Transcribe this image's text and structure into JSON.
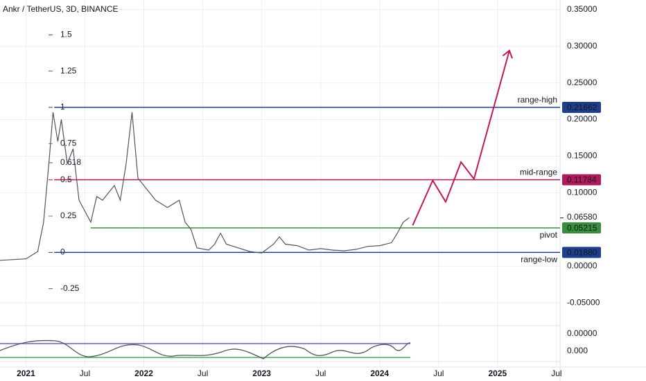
{
  "chart_data": {
    "type": "line",
    "title": "Ankr / TetherUS, 3D, BINANCE",
    "xlim": [
      2020.78,
      2025.53
    ],
    "xticks": [
      {
        "value": 2021,
        "label": "2021"
      },
      {
        "value": 2021.5,
        "label": "Jul"
      },
      {
        "value": 2022,
        "label": "2022"
      },
      {
        "value": 2022.5,
        "label": "Jul"
      },
      {
        "value": 2023,
        "label": "2023"
      },
      {
        "value": 2023.5,
        "label": "Jul"
      },
      {
        "value": 2024,
        "label": "2024"
      },
      {
        "value": 2024.5,
        "label": "Jul"
      },
      {
        "value": 2025,
        "label": "2025"
      },
      {
        "value": 2025.5,
        "label": "Jul"
      }
    ],
    "ylim": [
      -0.081,
      0.363
    ],
    "yticks": [
      {
        "value": 0.35,
        "label": "0.35000"
      },
      {
        "value": 0.3,
        "label": "0.30000"
      },
      {
        "value": 0.25,
        "label": "0.25000"
      },
      {
        "value": 0.2,
        "label": "0.20000"
      },
      {
        "value": 0.15,
        "label": "0.15000"
      },
      {
        "value": 0.1,
        "label": "0.10000"
      },
      {
        "value": 0,
        "label": "0.00000"
      },
      {
        "value": -0.05,
        "label": "-0.05000"
      }
    ],
    "grid": true,
    "color": "#50535e",
    "x": [
      2020.78,
      2021.0,
      2021.1,
      2021.15,
      2021.2,
      2021.23,
      2021.27,
      2021.3,
      2021.35,
      2021.4,
      2021.45,
      2021.5,
      2021.55,
      2021.6,
      2021.65,
      2021.7,
      2021.75,
      2021.8,
      2021.85,
      2021.9,
      2021.95,
      2022.0,
      2022.1,
      2022.2,
      2022.3,
      2022.35,
      2022.4,
      2022.45,
      2022.55,
      2022.6,
      2022.65,
      2022.7,
      2022.8,
      2022.9,
      2023.0,
      2023.1,
      2023.15,
      2023.2,
      2023.3,
      2023.4,
      2023.5,
      2023.6,
      2023.7,
      2023.8,
      2023.9,
      2024.0,
      2024.1,
      2024.15,
      2024.2,
      2024.25
    ],
    "values": [
      0.008,
      0.01,
      0.02,
      0.06,
      0.15,
      0.21,
      0.17,
      0.2,
      0.14,
      0.16,
      0.09,
      0.075,
      0.06,
      0.095,
      0.09,
      0.1,
      0.11,
      0.09,
      0.14,
      0.21,
      0.12,
      0.11,
      0.09,
      0.08,
      0.09,
      0.06,
      0.05,
      0.025,
      0.022,
      0.03,
      0.045,
      0.03,
      0.025,
      0.02,
      0.018,
      0.03,
      0.04,
      0.03,
      0.028,
      0.022,
      0.024,
      0.022,
      0.021,
      0.023,
      0.027,
      0.028,
      0.032,
      0.045,
      0.06,
      0.066
    ],
    "current_price": {
      "value": 0.0658,
      "label": "0.06580"
    },
    "projection": {
      "color": "#c2185b",
      "x": [
        2024.28,
        2024.45,
        2024.56,
        2024.69,
        2024.8,
        2025.1
      ],
      "values": [
        0.0557,
        0.117,
        0.0877,
        0.142,
        0.119,
        0.294
      ]
    },
    "levels": [
      {
        "name": "range-high",
        "value": 0.21662,
        "label": "0.21662",
        "color": "#1e3f8a",
        "from": 2021.24
      },
      {
        "name": "mid-range",
        "value": 0.11784,
        "label": "0.11784",
        "color": "#b0195c",
        "from": 2021.24
      },
      {
        "name": "pivot",
        "value": 0.05215,
        "label": "0.05215",
        "color": "#388e3c",
        "from": 2021.55
      },
      {
        "name": "range-low",
        "value": 0.0188,
        "label": "0.01880",
        "color": "#1e3f8a",
        "from": 2021.24
      }
    ],
    "fib_levels": [
      {
        "value": 1.5,
        "color": "#1e3f8a"
      },
      {
        "value": 1.25,
        "color": "#8e3a7e"
      },
      {
        "value": 1,
        "color": "#1e3f8a"
      },
      {
        "value": 0.75,
        "color": "#787b86"
      },
      {
        "value": 0.618,
        "color": "#2e6b5a"
      },
      {
        "value": 0.5,
        "color": "#b0195c"
      },
      {
        "value": 0.25,
        "color": "#787b86"
      },
      {
        "value": 0,
        "color": "#1e3f8a"
      },
      {
        "value": -0.25,
        "color": "#8e3a7e"
      }
    ],
    "volume_axis_label": "0.00000",
    "oscillator_axis_label": "0.000"
  }
}
